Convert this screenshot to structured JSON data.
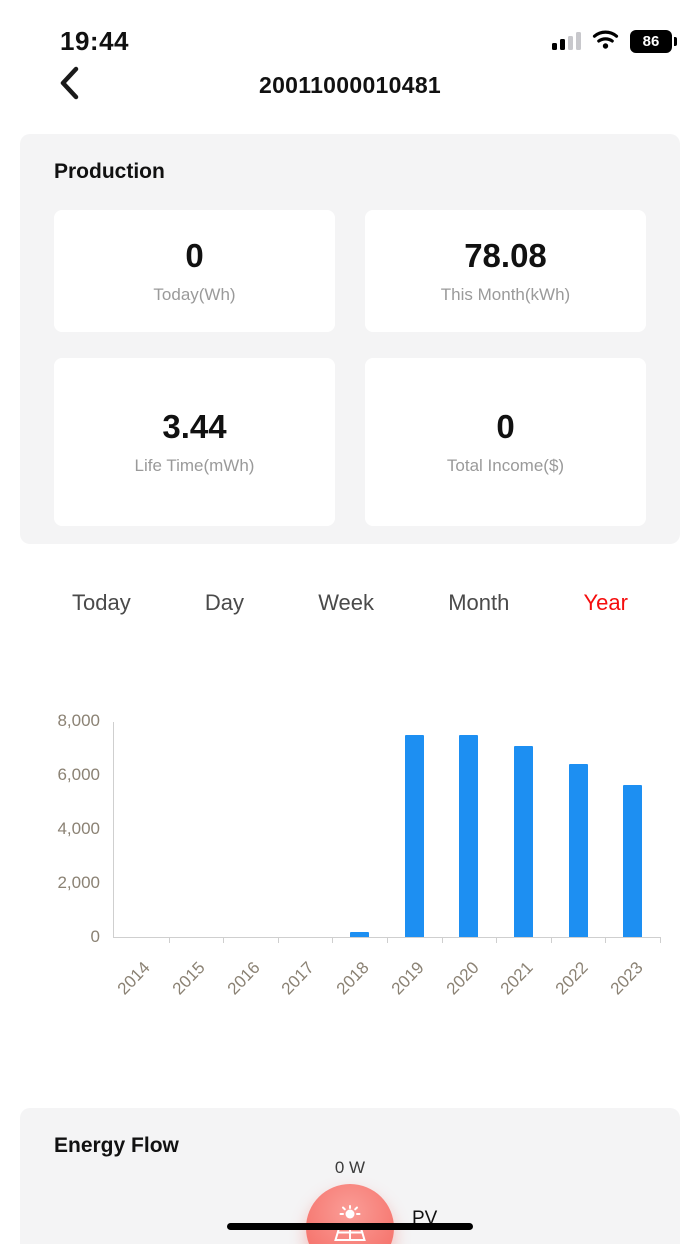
{
  "status_bar": {
    "time": "19:44",
    "battery": "86"
  },
  "nav": {
    "title": "20011000010481"
  },
  "production": {
    "title": "Production",
    "stats": [
      {
        "value": "0",
        "label": "Today(Wh)"
      },
      {
        "value": "78.08",
        "label": "This Month(kWh)"
      },
      {
        "value": "3.44",
        "label": "Life Time(mWh)"
      },
      {
        "value": "0",
        "label": "Total Income($)"
      }
    ]
  },
  "tabs": {
    "items": [
      {
        "label": "Today",
        "active": false
      },
      {
        "label": "Day",
        "active": false
      },
      {
        "label": "Week",
        "active": false
      },
      {
        "label": "Month",
        "active": false
      },
      {
        "label": "Year",
        "active": true
      }
    ],
    "active_color": "#f50d0d",
    "inactive_color": "#4a4a4a"
  },
  "chart_data": {
    "type": "bar",
    "categories": [
      "2014",
      "2015",
      "2016",
      "2017",
      "2018",
      "2019",
      "2020",
      "2021",
      "2022",
      "2023"
    ],
    "values": [
      0,
      0,
      0,
      0,
      180,
      7500,
      7520,
      7100,
      6450,
      5650
    ],
    "title": "",
    "xlabel": "",
    "ylabel": "",
    "ylim": [
      0,
      8000
    ],
    "yticks": [
      "0",
      "2,000",
      "4,000",
      "6,000",
      "8,000"
    ],
    "bar_color": "#1d8ff2",
    "grid": false,
    "legend": "none"
  },
  "energy_flow": {
    "title": "Energy Flow",
    "pv_power": "0 W",
    "pv_label": "PV",
    "node_color": "#f4655d"
  }
}
